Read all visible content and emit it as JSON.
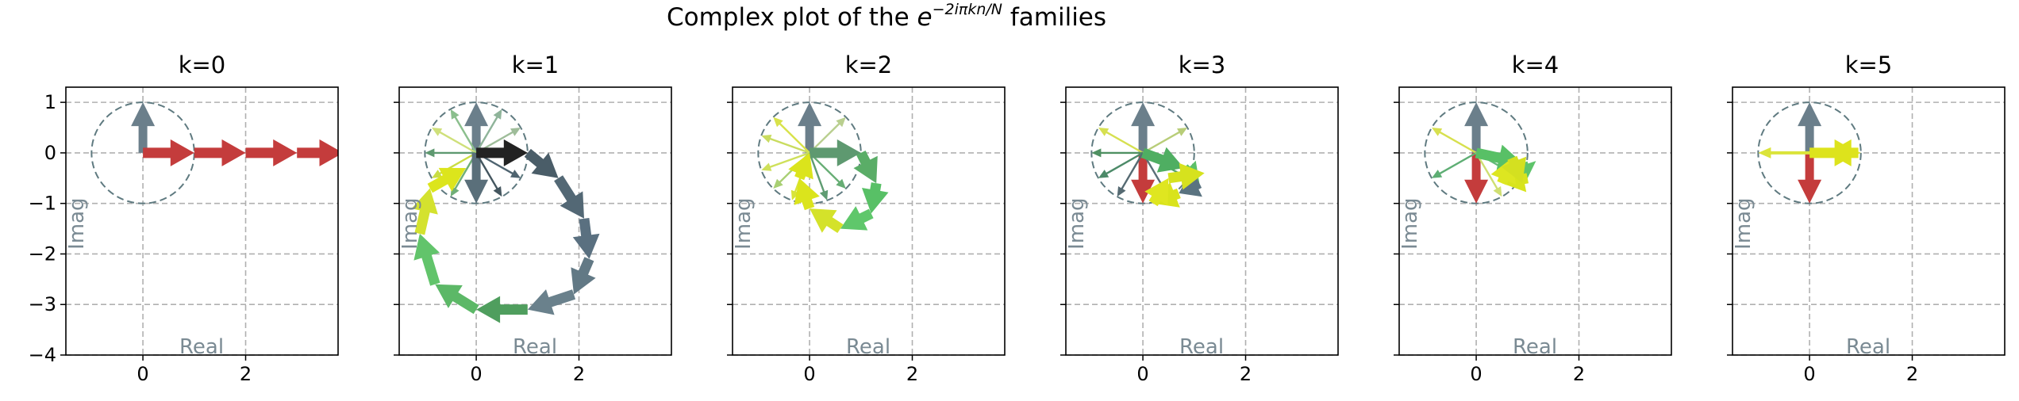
{
  "figure": {
    "title_prefix": "Complex plot of the ",
    "title_math": "e",
    "title_exponent": "−2iπkn/N",
    "title_suffix": " families",
    "colors": {
      "unit_circle": "#5f7a80",
      "grid": "#b0b0b0",
      "axis_label": "#7a8a93"
    }
  },
  "chart_data": [
    {
      "type": "quiver",
      "title": "k=0",
      "xlabel": "Real",
      "ylabel": "Imag",
      "xlim": [
        -1.5,
        3.8
      ],
      "ylim": [
        -4,
        1.3
      ],
      "xticks": [
        0,
        2
      ],
      "yticks": [
        1,
        0,
        -1,
        -2,
        -3,
        -4
      ],
      "grid": true,
      "unit_circle_radius": 1,
      "roots_of_unity": [
        {
          "angle_deg": 90,
          "color": "#6b7f8b"
        }
      ],
      "cumulative_arrows": [
        {
          "from": [
            0,
            0
          ],
          "to": [
            1,
            0
          ],
          "color": "#c43c3c"
        },
        {
          "from": [
            1,
            0
          ],
          "to": [
            2,
            0
          ],
          "color": "#c43c3c"
        },
        {
          "from": [
            2,
            0
          ],
          "to": [
            3,
            0
          ],
          "color": "#c43c3c"
        },
        {
          "from": [
            3,
            0
          ],
          "to": [
            3.9,
            0
          ],
          "color": "#c43c3c"
        }
      ]
    },
    {
      "type": "quiver",
      "title": "k=1",
      "xlabel": "Real",
      "ylabel": "Imag",
      "xlim": [
        -1.5,
        3.8
      ],
      "ylim": [
        -4,
        1.3
      ],
      "xticks": [
        0,
        2
      ],
      "yticks": [
        1,
        0,
        -1,
        -2,
        -3,
        -4
      ],
      "grid": true,
      "unit_circle_radius": 1,
      "roots_of_unity": [
        {
          "angle_deg": 90,
          "color": "#6b7f8b"
        },
        {
          "angle_deg": 0,
          "color": "#222222"
        },
        {
          "angle_deg": 30,
          "color": "#9fbd9a"
        },
        {
          "angle_deg": 60,
          "color": "#8fb49a"
        },
        {
          "angle_deg": 120,
          "color": "#8bbf8d"
        },
        {
          "angle_deg": 150,
          "color": "#cfe07a"
        },
        {
          "angle_deg": 180,
          "color": "#5e9970"
        },
        {
          "angle_deg": 210,
          "color": "#c9dd44"
        },
        {
          "angle_deg": 240,
          "color": "#6fae78"
        },
        {
          "angle_deg": 270,
          "color": "#5a6f7a"
        },
        {
          "angle_deg": 300,
          "color": "#44565f"
        },
        {
          "angle_deg": 330,
          "color": "#4f6470"
        }
      ],
      "cumulative_arrows": [
        {
          "from": [
            0,
            0
          ],
          "to": [
            1,
            0
          ],
          "color": "#222222"
        },
        {
          "from": [
            1,
            0
          ],
          "to": [
            1.6,
            -0.5
          ],
          "color": "#4a5d68"
        },
        {
          "from": [
            1.6,
            -0.5
          ],
          "to": [
            2.1,
            -1.3
          ],
          "color": "#536875"
        },
        {
          "from": [
            2.1,
            -1.3
          ],
          "to": [
            2.2,
            -2.1
          ],
          "color": "#5a7080"
        },
        {
          "from": [
            2.2,
            -2.1
          ],
          "to": [
            1.9,
            -2.8
          ],
          "color": "#627985"
        },
        {
          "from": [
            1.9,
            -2.8
          ],
          "to": [
            1.0,
            -3.1
          ],
          "color": "#6a818c"
        },
        {
          "from": [
            1.0,
            -3.1
          ],
          "to": [
            0.0,
            -3.1
          ],
          "color": "#4f9e5e"
        },
        {
          "from": [
            0.0,
            -3.1
          ],
          "to": [
            -0.8,
            -2.6
          ],
          "color": "#5cb867"
        },
        {
          "from": [
            -0.8,
            -2.6
          ],
          "to": [
            -1.1,
            -1.6
          ],
          "color": "#62c46b"
        },
        {
          "from": [
            -1.1,
            -1.6
          ],
          "to": [
            -0.9,
            -0.7
          ],
          "color": "#d4e22e"
        },
        {
          "from": [
            -0.9,
            -0.7
          ],
          "to": [
            -0.2,
            -0.3
          ],
          "color": "#dce51c"
        }
      ]
    },
    {
      "type": "quiver",
      "title": "k=2",
      "xlabel": "Real",
      "ylabel": "Imag",
      "xlim": [
        -1.5,
        3.8
      ],
      "ylim": [
        -4,
        1.3
      ],
      "xticks": [
        0,
        2
      ],
      "yticks": [
        1,
        0,
        -1,
        -2,
        -3,
        -4
      ],
      "grid": true,
      "unit_circle_radius": 1,
      "roots_of_unity": [
        {
          "angle_deg": 90,
          "color": "#6b7f8b"
        },
        {
          "angle_deg": 0,
          "color": "#5e9970"
        },
        {
          "angle_deg": 45,
          "color": "#b9cf8f"
        },
        {
          "angle_deg": 135,
          "color": "#d8e24a"
        },
        {
          "angle_deg": 160,
          "color": "#c9dc5f"
        },
        {
          "angle_deg": 200,
          "color": "#cfe05a"
        },
        {
          "angle_deg": 225,
          "color": "#a8cf73"
        },
        {
          "angle_deg": 250,
          "color": "#d8e43a"
        },
        {
          "angle_deg": 290,
          "color": "#5f9c72"
        },
        {
          "angle_deg": 315,
          "color": "#66ad74"
        }
      ],
      "cumulative_arrows": [
        {
          "from": [
            0,
            0
          ],
          "to": [
            1.0,
            0.0
          ],
          "color": "#5e9970"
        },
        {
          "from": [
            1.0,
            0.0
          ],
          "to": [
            1.3,
            -0.6
          ],
          "color": "#5aad67"
        },
        {
          "from": [
            1.3,
            -0.6
          ],
          "to": [
            1.2,
            -1.2
          ],
          "color": "#58c066"
        },
        {
          "from": [
            1.2,
            -1.2
          ],
          "to": [
            0.6,
            -1.5
          ],
          "color": "#5fc76b"
        },
        {
          "from": [
            0.6,
            -1.5
          ],
          "to": [
            0.0,
            -1.1
          ],
          "color": "#d4e22a"
        },
        {
          "from": [
            0.0,
            -1.1
          ],
          "to": [
            -0.2,
            -0.5
          ],
          "color": "#dbe41c"
        },
        {
          "from": [
            -0.2,
            -0.5
          ],
          "to": [
            0.0,
            0.0
          ],
          "color": "#dbe41c"
        }
      ]
    },
    {
      "type": "quiver",
      "title": "k=3",
      "xlabel": "Real",
      "ylabel": "Imag",
      "xlim": [
        -1.5,
        3.8
      ],
      "ylim": [
        -4,
        1.3
      ],
      "xticks": [
        0,
        2
      ],
      "yticks": [
        1,
        0,
        -1,
        -2,
        -3,
        -4
      ],
      "grid": true,
      "unit_circle_radius": 1,
      "roots_of_unity": [
        {
          "angle_deg": 90,
          "color": "#6b7f8b"
        },
        {
          "angle_deg": 270,
          "color": "#c43c3c"
        },
        {
          "angle_deg": 30,
          "color": "#b8cd78"
        },
        {
          "angle_deg": 150,
          "color": "#d6e050"
        },
        {
          "angle_deg": 180,
          "color": "#4f9062"
        },
        {
          "angle_deg": 210,
          "color": "#4c8a68"
        },
        {
          "angle_deg": 240,
          "color": "#556a72"
        },
        {
          "angle_deg": 300,
          "color": "#5a7078"
        },
        {
          "angle_deg": 330,
          "color": "#58a36b"
        }
      ],
      "cumulative_arrows": [
        {
          "from": [
            0,
            0
          ],
          "to": [
            0.8,
            -0.3
          ],
          "color": "#4fae62"
        },
        {
          "from": [
            0.8,
            -0.3
          ],
          "to": [
            1.1,
            -0.6
          ],
          "color": "#5cc068"
        },
        {
          "from": [
            1.1,
            -0.6
          ],
          "to": [
            0.7,
            -0.8
          ],
          "color": "#5a7380"
        },
        {
          "from": [
            0.7,
            -0.8
          ],
          "to": [
            0.2,
            -1.0
          ],
          "color": "#d9e31c"
        },
        {
          "from": [
            0.2,
            -1.0
          ],
          "to": [
            0.5,
            -0.5
          ],
          "color": "#dfe620"
        },
        {
          "from": [
            0.5,
            -0.5
          ],
          "to": [
            1.2,
            -0.4
          ],
          "color": "#d6e21e"
        }
      ]
    },
    {
      "type": "quiver",
      "title": "k=4",
      "xlabel": "Real",
      "ylabel": "Imag",
      "xlim": [
        -1.5,
        3.8
      ],
      "ylim": [
        -4,
        1.3
      ],
      "xticks": [
        0,
        2
      ],
      "yticks": [
        1,
        0,
        -1,
        -2,
        -3,
        -4
      ],
      "grid": true,
      "unit_circle_radius": 1,
      "roots_of_unity": [
        {
          "angle_deg": 90,
          "color": "#6b7f8b"
        },
        {
          "angle_deg": 270,
          "color": "#c43c3c"
        },
        {
          "angle_deg": 150,
          "color": "#d7e04e"
        },
        {
          "angle_deg": 210,
          "color": "#5eae74"
        },
        {
          "angle_deg": 300,
          "color": "#cfdf72"
        },
        {
          "angle_deg": 330,
          "color": "#63b979"
        }
      ],
      "cumulative_arrows": [
        {
          "from": [
            0,
            0
          ],
          "to": [
            0.9,
            -0.2
          ],
          "color": "#58c066"
        },
        {
          "from": [
            0.9,
            -0.2
          ],
          "to": [
            1.0,
            -0.5
          ],
          "color": "#5ec46a"
        },
        {
          "from": [
            1.0,
            -0.5
          ],
          "to": [
            0.5,
            -0.6
          ],
          "color": "#d8e41c"
        },
        {
          "from": [
            0.5,
            -0.6
          ],
          "to": [
            0.7,
            -0.1
          ],
          "color": "#dde621"
        },
        {
          "from": [
            0.7,
            -0.1
          ],
          "to": [
            0.9,
            -0.6
          ],
          "color": "#d4e020"
        }
      ]
    },
    {
      "type": "quiver",
      "title": "k=5",
      "xlabel": "Real",
      "ylabel": "Imag",
      "xlim": [
        -1.5,
        3.8
      ],
      "ylim": [
        -4,
        1.3
      ],
      "xticks": [
        0,
        2
      ],
      "yticks": [
        1,
        0,
        -1,
        -2,
        -3,
        -4
      ],
      "grid": true,
      "unit_circle_radius": 1,
      "roots_of_unity": [
        {
          "angle_deg": 90,
          "color": "#6b7f8b"
        },
        {
          "angle_deg": 270,
          "color": "#c43c3c"
        },
        {
          "angle_deg": 180,
          "color": "#dbe43a"
        },
        {
          "angle_deg": 0,
          "color": "#dbe43a"
        }
      ],
      "cumulative_arrows": [
        {
          "from": [
            0,
            0
          ],
          "to": [
            0.95,
            0.0
          ],
          "color": "#dde31c"
        },
        {
          "from": [
            0.95,
            0.0
          ],
          "to": [
            0.35,
            0.0
          ],
          "color": "#dde31c"
        }
      ]
    }
  ]
}
